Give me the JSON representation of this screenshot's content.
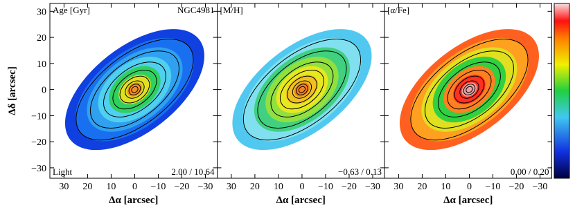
{
  "chart_data": [
    {
      "type": "map",
      "title": "Age [Gyr]",
      "galaxy": "NGC4981",
      "weighting": "Light",
      "range_label": "2.00 / 10.64",
      "xlabel": "Δα [arcsec]",
      "ylabel": "Δδ [arcsec]",
      "xlim": [
        36,
        -35
      ],
      "ylim": [
        -34,
        33
      ],
      "xticks": [
        30,
        20,
        10,
        0,
        {
          "value": -10,
          "label": "−10"
        },
        {
          "value": -20,
          "label": "−20"
        },
        {
          "value": -30,
          "label": "−30"
        }
      ],
      "yticks": [
        {
          "value": -30,
          "label": "−30"
        },
        {
          "value": -20,
          "label": "−20"
        },
        {
          "value": -10,
          "label": "−10"
        },
        0,
        10,
        20,
        30
      ]
    },
    {
      "type": "map",
      "title": "[M/H]",
      "range_label": "−0.63 / 0.13",
      "xlabel": "Δα [arcsec]",
      "xlim": [
        36,
        -35
      ],
      "xticks": [
        30,
        20,
        10,
        0,
        {
          "value": -10,
          "label": "−10"
        },
        {
          "value": -20,
          "label": "−20"
        },
        {
          "value": -30,
          "label": "−30"
        }
      ]
    },
    {
      "type": "map",
      "title": "[α/Fe]",
      "range_label": "0.00 / 0.20",
      "xlabel": "Δα [arcsec]",
      "xlim": [
        36,
        -35
      ],
      "xticks": [
        30,
        20,
        10,
        0,
        {
          "value": -10,
          "label": "−10"
        },
        {
          "value": -20,
          "label": "−20"
        },
        {
          "value": -30,
          "label": "−30"
        }
      ]
    }
  ]
}
